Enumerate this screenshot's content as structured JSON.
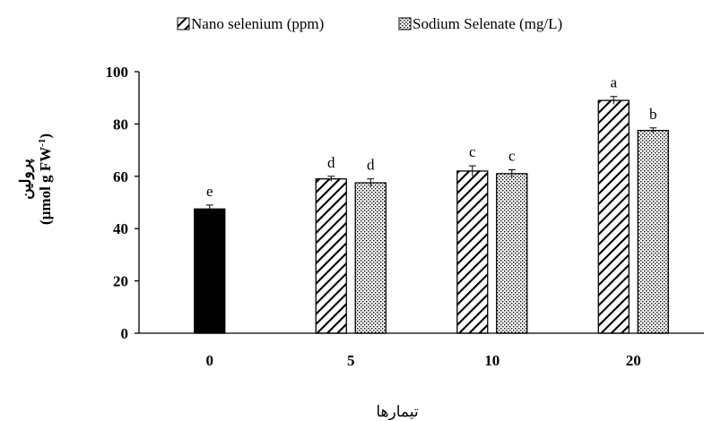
{
  "chart_data": {
    "type": "bar",
    "title": "",
    "xlabel": "تیمارها",
    "ylabel_line1": "پرولین",
    "ylabel_line2": "(µmol g FW",
    "ylabel_sup": "-1",
    "ylabel_close": ")",
    "categories": [
      "0",
      "5",
      "10",
      "20"
    ],
    "ylim": [
      0,
      100
    ],
    "yticks": [
      "0",
      "20",
      "40",
      "60",
      "80",
      "100"
    ],
    "grid": false,
    "legend_position": "top",
    "series": [
      {
        "name": "Nano selenium (ppm)",
        "pattern": "diagonal-hatch",
        "color": "#000000",
        "values": [
          null,
          59,
          62,
          89
        ],
        "errors": [
          null,
          1,
          2,
          1.5
        ],
        "letters": [
          null,
          "d",
          "c",
          "a"
        ]
      },
      {
        "name": "Sodium Selenate (mg/L)",
        "pattern": "dotted",
        "color": "#000000",
        "values": [
          null,
          57.5,
          61,
          77.5
        ],
        "errors": [
          null,
          1.5,
          1.5,
          1
        ],
        "letters": [
          null,
          "d",
          "c",
          "b"
        ]
      }
    ],
    "control": {
      "category": "0",
      "value": 47.5,
      "error": 1.5,
      "letter": "e",
      "color": "#000000"
    }
  }
}
